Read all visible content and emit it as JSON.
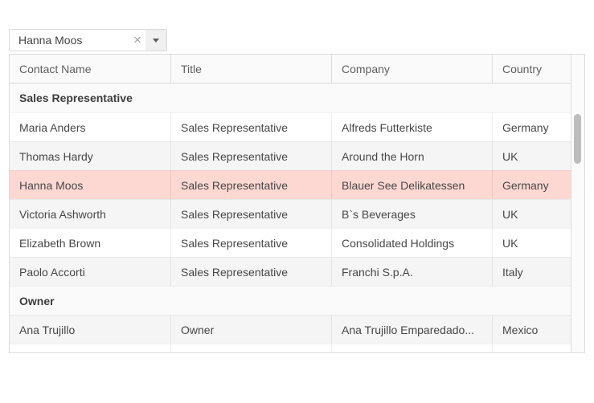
{
  "combobox": {
    "value": "Hanna Moos",
    "clear_icon": "×",
    "dropdown_icon": "▼"
  },
  "grid": {
    "columns": [
      "Contact Name",
      "Title",
      "Company",
      "Country"
    ],
    "groups": [
      {
        "label": "Sales Representative",
        "rows": [
          {
            "contact": "Maria Anders",
            "title": "Sales Representative",
            "company": "Alfreds Futterkiste",
            "country": "Germany",
            "variant": "normal"
          },
          {
            "contact": "Thomas Hardy",
            "title": "Sales Representative",
            "company": "Around the Horn",
            "country": "UK",
            "variant": "alt"
          },
          {
            "contact": "Hanna Moos",
            "title": "Sales Representative",
            "company": "Blauer See Delikatessen",
            "country": "Germany",
            "variant": "selected"
          },
          {
            "contact": "Victoria Ashworth",
            "title": "Sales Representative",
            "company": "B`s Beverages",
            "country": "UK",
            "variant": "alt"
          },
          {
            "contact": "Elizabeth Brown",
            "title": "Sales Representative",
            "company": "Consolidated Holdings",
            "country": "UK",
            "variant": "normal"
          },
          {
            "contact": "Paolo Accorti",
            "title": "Sales Representative",
            "company": "Franchi S.p.A.",
            "country": "Italy",
            "variant": "alt"
          }
        ]
      },
      {
        "label": "Owner",
        "rows": [
          {
            "contact": "Ana Trujillo",
            "title": "Owner",
            "company": "Ana Trujillo Emparedado...",
            "country": "Mexico",
            "variant": "alt"
          }
        ]
      }
    ],
    "colors": {
      "selected_row": "#fdd8d3",
      "alt_row": "#f5f5f5",
      "header_bg": "#fafafa",
      "group_row_bg": "#fafafa",
      "border": "#dbdbdb",
      "scroll_thumb": "#bdbdbd"
    }
  }
}
